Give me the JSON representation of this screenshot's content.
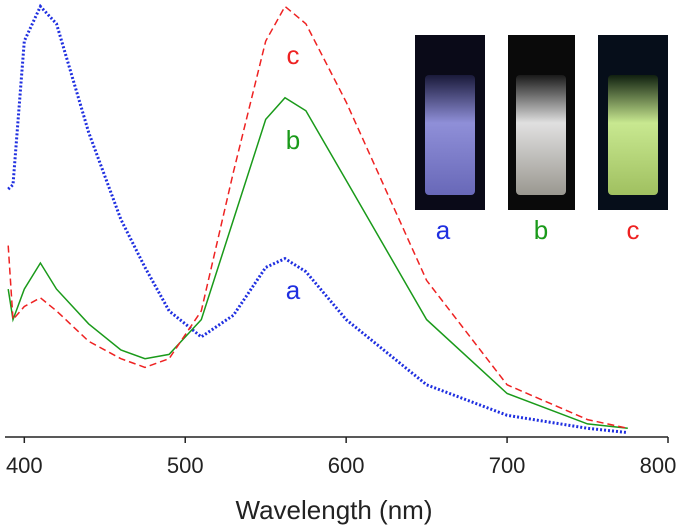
{
  "chart_data": {
    "type": "line",
    "x_label": "Wavelength (nm)",
    "x": [
      390,
      393,
      400,
      410,
      420,
      440,
      460,
      475,
      490,
      510,
      530,
      550,
      562,
      575,
      600,
      650,
      700,
      750,
      775
    ],
    "series": [
      {
        "name": "a",
        "color": "#1f2fe0",
        "style": "dotted",
        "values": [
          0.57,
          0.58,
          0.91,
          0.99,
          0.95,
          0.7,
          0.5,
          0.39,
          0.29,
          0.23,
          0.28,
          0.39,
          0.41,
          0.38,
          0.27,
          0.12,
          0.05,
          0.02,
          0.01
        ]
      },
      {
        "name": "b",
        "color": "#1a9a1a",
        "style": "solid",
        "values": [
          0.34,
          0.27,
          0.34,
          0.4,
          0.34,
          0.26,
          0.2,
          0.18,
          0.19,
          0.27,
          0.5,
          0.73,
          0.78,
          0.75,
          0.59,
          0.27,
          0.1,
          0.03,
          0.02
        ]
      },
      {
        "name": "c",
        "color": "#ee2222",
        "style": "dashed",
        "values": [
          0.44,
          0.27,
          0.3,
          0.32,
          0.29,
          0.22,
          0.18,
          0.16,
          0.18,
          0.29,
          0.61,
          0.91,
          0.99,
          0.95,
          0.77,
          0.36,
          0.12,
          0.04,
          0.02
        ]
      }
    ],
    "xlim": [
      388,
      800
    ],
    "xticks": [
      400,
      500,
      600,
      700,
      800
    ],
    "ylim": [
      0,
      1
    ],
    "grid": false
  }
}
